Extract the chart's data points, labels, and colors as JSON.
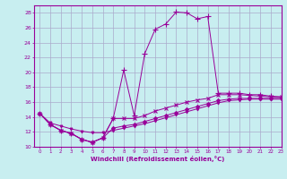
{
  "title": "",
  "xlabel": "Windchill (Refroidissement éolien,°C)",
  "ylabel": "",
  "bg_color": "#c8eef0",
  "grid_color": "#aaaacc",
  "line_color": "#990099",
  "xlim": [
    -0.5,
    23
  ],
  "ylim": [
    10,
    29
  ],
  "xticks": [
    0,
    1,
    2,
    3,
    4,
    5,
    6,
    7,
    8,
    9,
    10,
    11,
    12,
    13,
    14,
    15,
    16,
    17,
    18,
    19,
    20,
    21,
    22,
    23
  ],
  "yticks": [
    10,
    12,
    14,
    16,
    18,
    20,
    22,
    24,
    26,
    28
  ],
  "series": [
    [
      14.5,
      13.0,
      12.2,
      11.8,
      11.0,
      10.6,
      11.2,
      13.8,
      20.3,
      14.2,
      22.5,
      25.8,
      26.5,
      28.1,
      28.0,
      27.2,
      27.5,
      17.2,
      17.2,
      17.2,
      17.0,
      17.0,
      16.8,
      16.7
    ],
    [
      14.5,
      13.0,
      12.2,
      11.8,
      11.0,
      10.6,
      11.2,
      13.8,
      13.8,
      13.8,
      14.2,
      14.8,
      15.2,
      15.6,
      16.0,
      16.3,
      16.5,
      17.0,
      17.0,
      17.0,
      16.9,
      16.8,
      16.7,
      16.7
    ],
    [
      14.5,
      13.0,
      12.2,
      11.8,
      11.0,
      10.6,
      11.2,
      12.5,
      12.8,
      13.0,
      13.4,
      13.8,
      14.2,
      14.6,
      15.0,
      15.4,
      15.8,
      16.2,
      16.4,
      16.5,
      16.5,
      16.5,
      16.5,
      16.5
    ],
    [
      14.5,
      13.2,
      12.8,
      12.4,
      12.1,
      11.9,
      11.9,
      12.2,
      12.5,
      12.8,
      13.1,
      13.5,
      13.9,
      14.3,
      14.7,
      15.1,
      15.5,
      15.9,
      16.2,
      16.3,
      16.4,
      16.4,
      16.4,
      16.4
    ]
  ]
}
